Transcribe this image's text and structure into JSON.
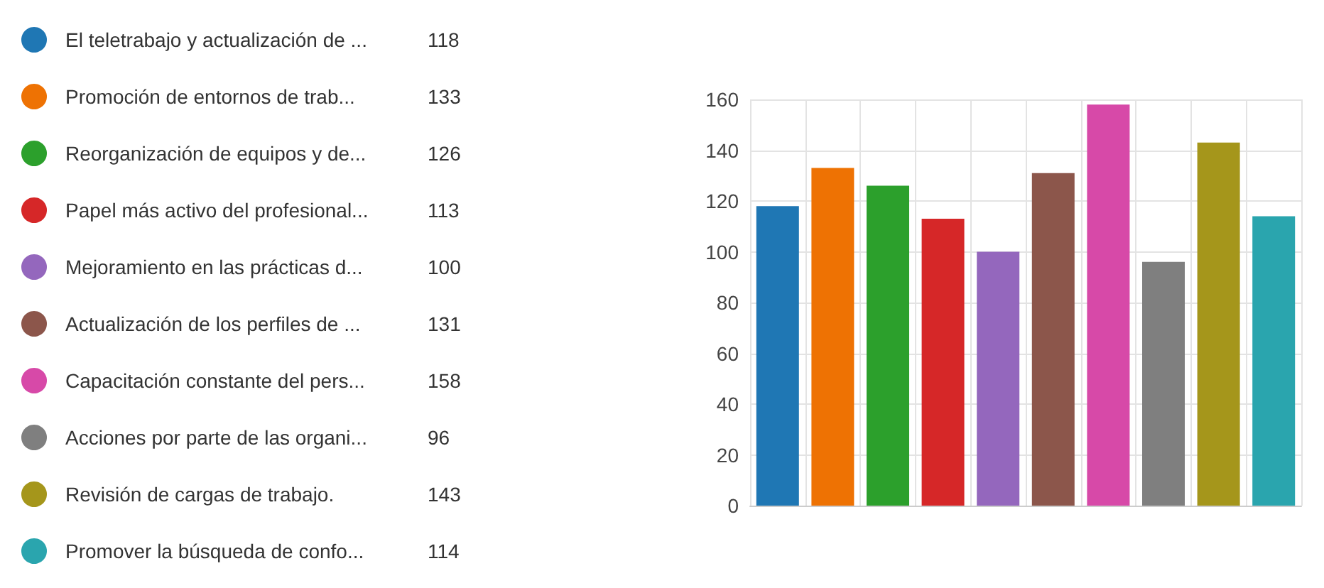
{
  "chart_data": {
    "type": "bar",
    "categories": [
      null,
      null,
      null,
      null,
      null,
      null,
      null,
      null,
      null,
      null
    ],
    "series": [
      {
        "name": "El teletrabajo y actualización de ...",
        "color": "#1f77b4",
        "values": [
          118,
          null,
          null,
          null,
          null,
          null,
          null,
          null,
          null,
          null
        ]
      },
      {
        "name": "Promoción de entornos de trab...",
        "color": "#ee7203",
        "values": [
          null,
          133,
          null,
          null,
          null,
          null,
          null,
          null,
          null,
          null
        ]
      },
      {
        "name": "Reorganización de equipos y de...",
        "color": "#2ca02c",
        "values": [
          null,
          null,
          126,
          null,
          null,
          null,
          null,
          null,
          null,
          null
        ]
      },
      {
        "name": "Papel más activo del profesional...",
        "color": "#d62728",
        "values": [
          null,
          null,
          null,
          113,
          null,
          null,
          null,
          null,
          null,
          null
        ]
      },
      {
        "name": "Mejoramiento en las prácticas d...",
        "color": "#9467bd",
        "values": [
          null,
          null,
          null,
          null,
          100,
          null,
          null,
          null,
          null,
          null
        ]
      },
      {
        "name": "Actualización de los perfiles de ...",
        "color": "#8c564b",
        "values": [
          null,
          null,
          null,
          null,
          null,
          131,
          null,
          null,
          null,
          null
        ]
      },
      {
        "name": "Capacitación constante del pers...",
        "color": "#d749a8",
        "values": [
          null,
          null,
          null,
          null,
          null,
          null,
          158,
          null,
          null,
          null
        ]
      },
      {
        "name": "Acciones por parte de las organi...",
        "color": "#7f7f7f",
        "values": [
          null,
          null,
          null,
          null,
          null,
          null,
          null,
          96,
          null,
          null
        ]
      },
      {
        "name": "Revisión de cargas de trabajo.",
        "color": "#a5961b",
        "values": [
          null,
          null,
          null,
          null,
          null,
          null,
          null,
          null,
          143,
          null
        ]
      },
      {
        "name": "Promover la búsqueda de confo...",
        "color": "#2aa5ae",
        "values": [
          null,
          null,
          null,
          null,
          null,
          null,
          null,
          null,
          null,
          114
        ]
      }
    ],
    "annotations": [
      "118",
      "133",
      "126",
      "113",
      "100",
      "131",
      "158",
      "96",
      "143",
      "114"
    ],
    "ylim": [
      0,
      160
    ],
    "yticks": [
      0,
      20,
      40,
      60,
      80,
      100,
      120,
      140,
      160
    ],
    "grid": true,
    "legend": "left"
  }
}
